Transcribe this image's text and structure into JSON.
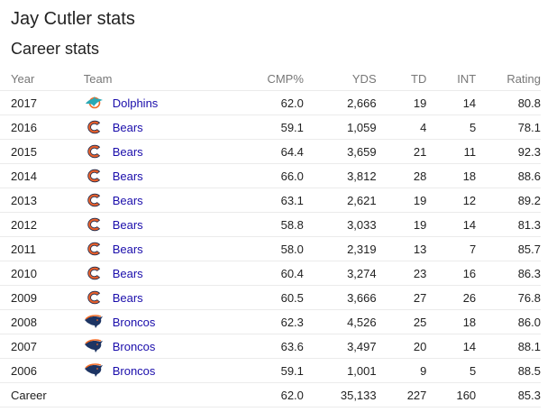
{
  "page_title": "Jay Cutler stats",
  "section_title": "Career stats",
  "columns": {
    "year": "Year",
    "team": "Team",
    "cmp": "CMP%",
    "yds": "YDS",
    "td": "TD",
    "int": "INT",
    "rating": "Rating"
  },
  "rows": [
    {
      "year": "2017",
      "team": "Dolphins",
      "logo": "dolphins-logo-icon",
      "cmp": "62.0",
      "yds": "2,666",
      "td": "19",
      "int": "14",
      "rating": "80.8"
    },
    {
      "year": "2016",
      "team": "Bears",
      "logo": "bears-logo-icon",
      "cmp": "59.1",
      "yds": "1,059",
      "td": "4",
      "int": "5",
      "rating": "78.1"
    },
    {
      "year": "2015",
      "team": "Bears",
      "logo": "bears-logo-icon",
      "cmp": "64.4",
      "yds": "3,659",
      "td": "21",
      "int": "11",
      "rating": "92.3"
    },
    {
      "year": "2014",
      "team": "Bears",
      "logo": "bears-logo-icon",
      "cmp": "66.0",
      "yds": "3,812",
      "td": "28",
      "int": "18",
      "rating": "88.6"
    },
    {
      "year": "2013",
      "team": "Bears",
      "logo": "bears-logo-icon",
      "cmp": "63.1",
      "yds": "2,621",
      "td": "19",
      "int": "12",
      "rating": "89.2"
    },
    {
      "year": "2012",
      "team": "Bears",
      "logo": "bears-logo-icon",
      "cmp": "58.8",
      "yds": "3,033",
      "td": "19",
      "int": "14",
      "rating": "81.3"
    },
    {
      "year": "2011",
      "team": "Bears",
      "logo": "bears-logo-icon",
      "cmp": "58.0",
      "yds": "2,319",
      "td": "13",
      "int": "7",
      "rating": "85.7"
    },
    {
      "year": "2010",
      "team": "Bears",
      "logo": "bears-logo-icon",
      "cmp": "60.4",
      "yds": "3,274",
      "td": "23",
      "int": "16",
      "rating": "86.3"
    },
    {
      "year": "2009",
      "team": "Bears",
      "logo": "bears-logo-icon",
      "cmp": "60.5",
      "yds": "3,666",
      "td": "27",
      "int": "26",
      "rating": "76.8"
    },
    {
      "year": "2008",
      "team": "Broncos",
      "logo": "broncos-logo-icon",
      "cmp": "62.3",
      "yds": "4,526",
      "td": "25",
      "int": "18",
      "rating": "86.0"
    },
    {
      "year": "2007",
      "team": "Broncos",
      "logo": "broncos-logo-icon",
      "cmp": "63.6",
      "yds": "3,497",
      "td": "20",
      "int": "14",
      "rating": "88.1"
    },
    {
      "year": "2006",
      "team": "Broncos",
      "logo": "broncos-logo-icon",
      "cmp": "59.1",
      "yds": "1,001",
      "td": "9",
      "int": "5",
      "rating": "88.5"
    }
  ],
  "career": {
    "label": "Career",
    "cmp": "62.0",
    "yds": "35,133",
    "td": "227",
    "int": "160",
    "rating": "85.3"
  },
  "colors": {
    "link": "#1a0dab",
    "header_text": "#777777",
    "divider": "#ebebeb",
    "bears_orange": "#e8602b",
    "dolphins_aqua": "#2aa9b5",
    "broncos_navy": "#1d3463"
  }
}
